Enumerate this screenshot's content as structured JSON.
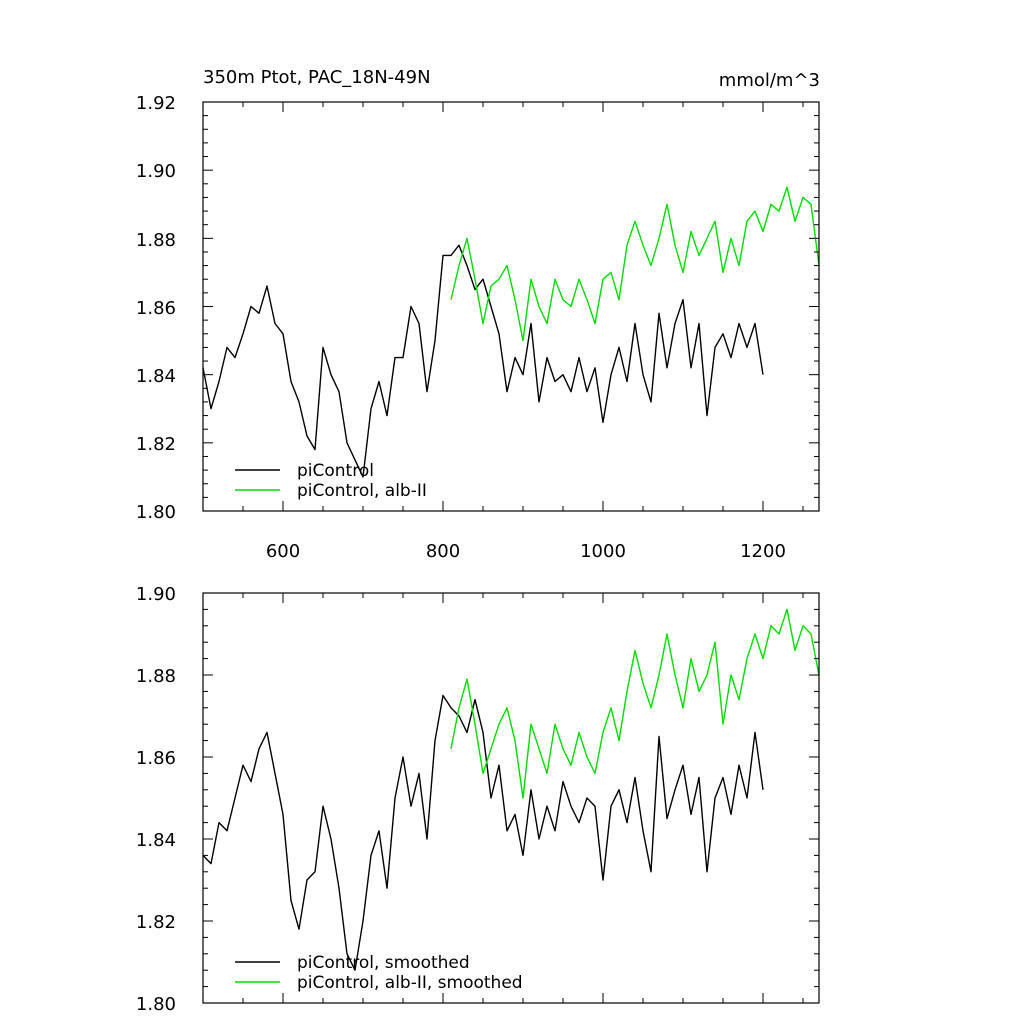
{
  "chart_data": [
    {
      "type": "line",
      "title_left": "350m Ptot, PAC_18N-49N",
      "title_right": "mmol/m^3",
      "xlabel": "",
      "ylabel": "",
      "xlim": [
        500,
        1270
      ],
      "ylim": [
        1.8,
        1.92
      ],
      "xticks": [
        600,
        800,
        1000,
        1200
      ],
      "xtick_labels": [
        "600",
        "800",
        "1000",
        "1200"
      ],
      "yticks": [
        1.8,
        1.82,
        1.84,
        1.86,
        1.88,
        1.9,
        1.92
      ],
      "ytick_labels": [
        "1.80",
        "1.82",
        "1.84",
        "1.86",
        "1.88",
        "1.90",
        "1.92"
      ],
      "grid": false,
      "legend_position": "bottom-left",
      "series": [
        {
          "name": "piControl",
          "color": "#000000",
          "x": [
            500,
            510,
            520,
            530,
            540,
            550,
            560,
            570,
            580,
            590,
            600,
            610,
            620,
            630,
            640,
            650,
            660,
            670,
            680,
            690,
            700,
            710,
            720,
            730,
            740,
            750,
            760,
            770,
            780,
            790,
            800,
            810,
            820,
            830,
            840,
            850,
            860,
            870,
            880,
            890,
            900,
            910,
            920,
            930,
            940,
            950,
            960,
            970,
            980,
            990,
            1000,
            1010,
            1020,
            1030,
            1040,
            1050,
            1060,
            1070,
            1080,
            1090,
            1100,
            1110,
            1120,
            1130,
            1140,
            1150,
            1160,
            1170,
            1180,
            1190,
            1200
          ],
          "values": [
            1.842,
            1.83,
            1.838,
            1.848,
            1.845,
            1.852,
            1.86,
            1.858,
            1.866,
            1.855,
            1.852,
            1.838,
            1.832,
            1.822,
            1.818,
            1.848,
            1.84,
            1.835,
            1.82,
            1.815,
            1.81,
            1.83,
            1.838,
            1.828,
            1.845,
            1.845,
            1.86,
            1.855,
            1.835,
            1.85,
            1.875,
            1.875,
            1.878,
            1.872,
            1.865,
            1.868,
            1.86,
            1.852,
            1.835,
            1.845,
            1.84,
            1.855,
            1.832,
            1.845,
            1.838,
            1.84,
            1.835,
            1.845,
            1.835,
            1.842,
            1.826,
            1.84,
            1.848,
            1.838,
            1.855,
            1.84,
            1.832,
            1.858,
            1.842,
            1.855,
            1.862,
            1.842,
            1.855,
            1.828,
            1.848,
            1.852,
            1.845,
            1.855,
            1.848,
            1.855,
            1.84
          ]
        },
        {
          "name": "piControl, alb-II",
          "color": "#00dd00",
          "x": [
            810,
            820,
            830,
            840,
            850,
            860,
            870,
            880,
            890,
            900,
            910,
            920,
            930,
            940,
            950,
            960,
            970,
            980,
            990,
            1000,
            1010,
            1020,
            1030,
            1040,
            1050,
            1060,
            1070,
            1080,
            1090,
            1100,
            1110,
            1120,
            1130,
            1140,
            1150,
            1160,
            1170,
            1180,
            1190,
            1200,
            1210,
            1220,
            1230,
            1240,
            1250,
            1260,
            1270
          ],
          "values": [
            1.862,
            1.872,
            1.88,
            1.868,
            1.855,
            1.866,
            1.868,
            1.872,
            1.862,
            1.85,
            1.868,
            1.86,
            1.855,
            1.868,
            1.862,
            1.86,
            1.868,
            1.862,
            1.855,
            1.868,
            1.87,
            1.862,
            1.878,
            1.885,
            1.878,
            1.872,
            1.88,
            1.89,
            1.878,
            1.87,
            1.882,
            1.875,
            1.88,
            1.885,
            1.87,
            1.88,
            1.872,
            1.885,
            1.888,
            1.882,
            1.89,
            1.888,
            1.895,
            1.885,
            1.892,
            1.89,
            1.872
          ]
        }
      ]
    },
    {
      "type": "line",
      "xlabel": "",
      "ylabel": "",
      "xlim": [
        500,
        1270
      ],
      "ylim": [
        1.8,
        1.9
      ],
      "yticks": [
        1.8,
        1.82,
        1.84,
        1.86,
        1.88,
        1.9
      ],
      "ytick_labels": [
        "1.80",
        "1.82",
        "1.84",
        "1.86",
        "1.88",
        "1.90"
      ],
      "xticks": [
        600,
        800,
        1000,
        1200
      ],
      "grid": false,
      "legend_position": "bottom-left",
      "series": [
        {
          "name": "piControl, smoothed",
          "color": "#000000",
          "x": [
            500,
            510,
            520,
            530,
            540,
            550,
            560,
            570,
            580,
            590,
            600,
            610,
            620,
            630,
            640,
            650,
            660,
            670,
            680,
            690,
            700,
            710,
            720,
            730,
            740,
            750,
            760,
            770,
            780,
            790,
            800,
            810,
            820,
            830,
            840,
            850,
            860,
            870,
            880,
            890,
            900,
            910,
            920,
            930,
            940,
            950,
            960,
            970,
            980,
            990,
            1000,
            1010,
            1020,
            1030,
            1040,
            1050,
            1060,
            1070,
            1080,
            1090,
            1100,
            1110,
            1120,
            1130,
            1140,
            1150,
            1160,
            1170,
            1180,
            1190,
            1200
          ],
          "values": [
            1.836,
            1.834,
            1.844,
            1.842,
            1.85,
            1.858,
            1.854,
            1.862,
            1.866,
            1.856,
            1.846,
            1.825,
            1.818,
            1.83,
            1.832,
            1.848,
            1.84,
            1.828,
            1.812,
            1.808,
            1.82,
            1.836,
            1.842,
            1.828,
            1.85,
            1.86,
            1.848,
            1.856,
            1.84,
            1.864,
            1.875,
            1.872,
            1.87,
            1.866,
            1.874,
            1.866,
            1.85,
            1.858,
            1.842,
            1.846,
            1.836,
            1.852,
            1.84,
            1.848,
            1.842,
            1.854,
            1.848,
            1.844,
            1.85,
            1.848,
            1.83,
            1.848,
            1.852,
            1.844,
            1.855,
            1.842,
            1.832,
            1.865,
            1.845,
            1.852,
            1.858,
            1.846,
            1.855,
            1.832,
            1.85,
            1.855,
            1.846,
            1.858,
            1.85,
            1.866,
            1.852
          ]
        },
        {
          "name": "piControl, alb-II, smoothed",
          "color": "#00dd00",
          "x": [
            810,
            820,
            830,
            840,
            850,
            860,
            870,
            880,
            890,
            900,
            910,
            920,
            930,
            940,
            950,
            960,
            970,
            980,
            990,
            1000,
            1010,
            1020,
            1030,
            1040,
            1050,
            1060,
            1070,
            1080,
            1090,
            1100,
            1110,
            1120,
            1130,
            1140,
            1150,
            1160,
            1170,
            1180,
            1190,
            1200,
            1210,
            1220,
            1230,
            1240,
            1250,
            1260,
            1270
          ],
          "values": [
            1.862,
            1.872,
            1.879,
            1.868,
            1.856,
            1.862,
            1.868,
            1.872,
            1.864,
            1.85,
            1.868,
            1.862,
            1.856,
            1.868,
            1.862,
            1.858,
            1.866,
            1.86,
            1.856,
            1.866,
            1.872,
            1.864,
            1.876,
            1.886,
            1.878,
            1.872,
            1.88,
            1.89,
            1.88,
            1.872,
            1.884,
            1.876,
            1.88,
            1.888,
            1.868,
            1.88,
            1.874,
            1.884,
            1.89,
            1.884,
            1.892,
            1.89,
            1.896,
            1.886,
            1.892,
            1.89,
            1.88
          ]
        }
      ]
    }
  ]
}
